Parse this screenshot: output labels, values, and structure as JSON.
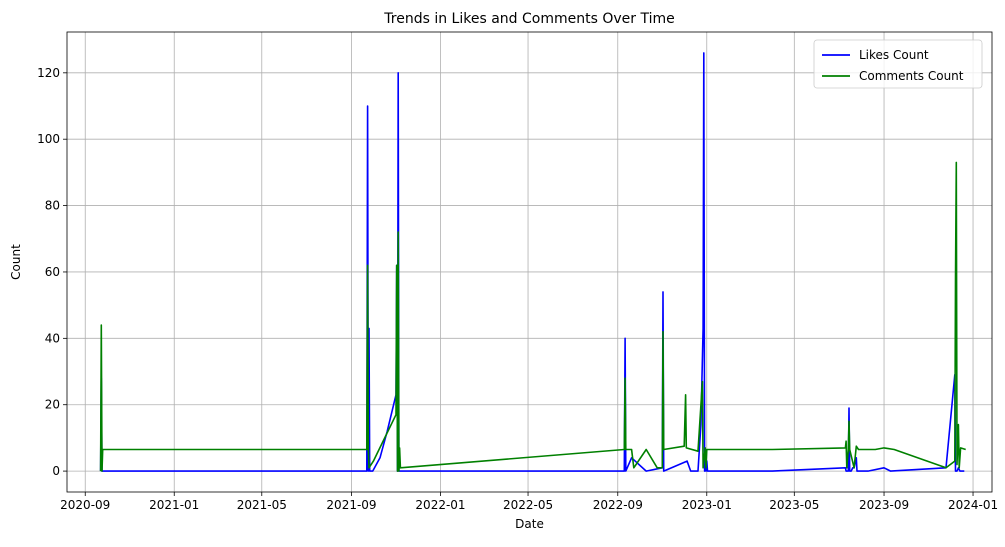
{
  "chart_data": {
    "type": "line",
    "title": "Trends in Likes and Comments Over Time",
    "xlabel": "Date",
    "ylabel": "Count",
    "x_ticks": [
      "2020-09",
      "2021-01",
      "2021-05",
      "2021-09",
      "2022-01",
      "2022-05",
      "2022-09",
      "2023-01",
      "2023-05",
      "2023-09",
      "2024-01"
    ],
    "y_ticks": [
      0,
      20,
      40,
      60,
      80,
      100,
      120
    ],
    "xlim": [
      "2020-08-07",
      "2024-01-27"
    ],
    "ylim": [
      -6.3,
      132.3
    ],
    "grid": true,
    "legend_position": "top-right",
    "series": [
      {
        "name": "Likes Count",
        "color": "#0000ff",
        "points": [
          [
            "2020-09-22",
            0
          ],
          [
            "2020-09-23",
            28
          ],
          [
            "2020-09-24",
            0
          ],
          [
            "2020-09-25",
            0
          ],
          [
            "2021-09-22",
            0
          ],
          [
            "2021-09-23",
            110
          ],
          [
            "2021-09-24",
            0
          ],
          [
            "2021-09-25",
            43
          ],
          [
            "2021-09-26",
            0
          ],
          [
            "2021-09-30",
            0
          ],
          [
            "2021-10-10",
            4
          ],
          [
            "2021-10-20",
            12
          ],
          [
            "2021-11-01",
            23
          ],
          [
            "2021-11-02",
            62
          ],
          [
            "2021-11-03",
            0
          ],
          [
            "2021-11-04",
            120
          ],
          [
            "2021-11-05",
            0
          ],
          [
            "2021-11-06",
            0
          ],
          [
            "2022-09-10",
            0
          ],
          [
            "2022-09-11",
            40
          ],
          [
            "2022-09-12",
            0
          ],
          [
            "2022-09-20",
            4
          ],
          [
            "2022-10-10",
            0
          ],
          [
            "2022-11-01",
            1
          ],
          [
            "2022-11-02",
            54
          ],
          [
            "2022-11-03",
            0
          ],
          [
            "2022-12-05",
            3
          ],
          [
            "2022-12-10",
            0
          ],
          [
            "2022-12-20",
            0
          ],
          [
            "2022-12-24",
            14
          ],
          [
            "2022-12-27",
            43
          ],
          [
            "2022-12-28",
            126
          ],
          [
            "2022-12-29",
            0
          ],
          [
            "2022-12-30",
            4
          ],
          [
            "2022-12-31",
            0
          ],
          [
            "2023-01-01",
            3
          ],
          [
            "2023-01-02",
            0
          ],
          [
            "2023-04-01",
            0
          ],
          [
            "2023-07-10",
            1
          ],
          [
            "2023-07-11",
            0
          ],
          [
            "2023-07-14",
            0
          ],
          [
            "2023-07-15",
            19
          ],
          [
            "2023-07-16",
            0
          ],
          [
            "2023-07-18",
            0
          ],
          [
            "2023-07-20",
            1
          ],
          [
            "2023-07-22",
            1
          ],
          [
            "2023-07-25",
            4
          ],
          [
            "2023-07-26",
            0
          ],
          [
            "2023-08-10",
            0
          ],
          [
            "2023-09-01",
            1
          ],
          [
            "2023-09-10",
            0
          ],
          [
            "2023-11-25",
            1
          ],
          [
            "2023-12-07",
            29
          ],
          [
            "2023-12-08",
            0
          ],
          [
            "2023-12-10",
            0
          ],
          [
            "2023-12-12",
            1
          ],
          [
            "2023-12-14",
            0
          ],
          [
            "2023-12-20",
            0
          ]
        ]
      },
      {
        "name": "Comments Count",
        "color": "#008000",
        "points": [
          [
            "2020-09-22",
            0
          ],
          [
            "2020-09-23",
            44
          ],
          [
            "2020-09-24",
            0
          ],
          [
            "2020-09-25",
            6.5
          ],
          [
            "2021-09-22",
            6.5
          ],
          [
            "2021-09-23",
            62
          ],
          [
            "2021-09-24",
            6.5
          ],
          [
            "2021-09-25",
            1
          ],
          [
            "2021-10-01",
            3
          ],
          [
            "2021-11-01",
            17
          ],
          [
            "2021-11-02",
            62
          ],
          [
            "2021-11-03",
            0
          ],
          [
            "2021-11-04",
            72
          ],
          [
            "2021-11-05",
            0
          ],
          [
            "2021-11-06",
            7
          ],
          [
            "2021-11-07",
            1
          ],
          [
            "2022-09-10",
            6.5
          ],
          [
            "2022-09-11",
            28
          ],
          [
            "2022-09-12",
            6.5
          ],
          [
            "2022-09-20",
            6.5
          ],
          [
            "2022-09-23",
            1
          ],
          [
            "2022-10-10",
            6.5
          ],
          [
            "2022-10-25",
            1
          ],
          [
            "2022-11-01",
            1
          ],
          [
            "2022-11-02",
            42
          ],
          [
            "2022-11-03",
            6.5
          ],
          [
            "2022-12-01",
            7.5
          ],
          [
            "2022-12-03",
            23
          ],
          [
            "2022-12-04",
            7
          ],
          [
            "2022-12-20",
            6
          ],
          [
            "2022-12-26",
            27
          ],
          [
            "2022-12-27",
            1
          ],
          [
            "2022-12-30",
            7
          ],
          [
            "2022-12-31",
            1
          ],
          [
            "2023-01-01",
            6.5
          ],
          [
            "2023-04-01",
            6.5
          ],
          [
            "2023-07-10",
            7
          ],
          [
            "2023-07-11",
            9
          ],
          [
            "2023-07-12",
            1
          ],
          [
            "2023-07-14",
            6.5
          ],
          [
            "2023-07-15",
            15
          ],
          [
            "2023-07-16",
            6.5
          ],
          [
            "2023-07-22",
            1
          ],
          [
            "2023-07-25",
            7.5
          ],
          [
            "2023-07-28",
            6.5
          ],
          [
            "2023-08-20",
            6.5
          ],
          [
            "2023-09-01",
            7
          ],
          [
            "2023-09-15",
            6.5
          ],
          [
            "2023-11-25",
            1
          ],
          [
            "2023-12-07",
            3
          ],
          [
            "2023-12-08",
            58
          ],
          [
            "2023-12-09",
            93
          ],
          [
            "2023-12-10",
            2
          ],
          [
            "2023-12-12",
            14
          ],
          [
            "2023-12-13",
            1
          ],
          [
            "2023-12-15",
            7
          ],
          [
            "2023-12-22",
            6.5
          ]
        ]
      }
    ]
  }
}
